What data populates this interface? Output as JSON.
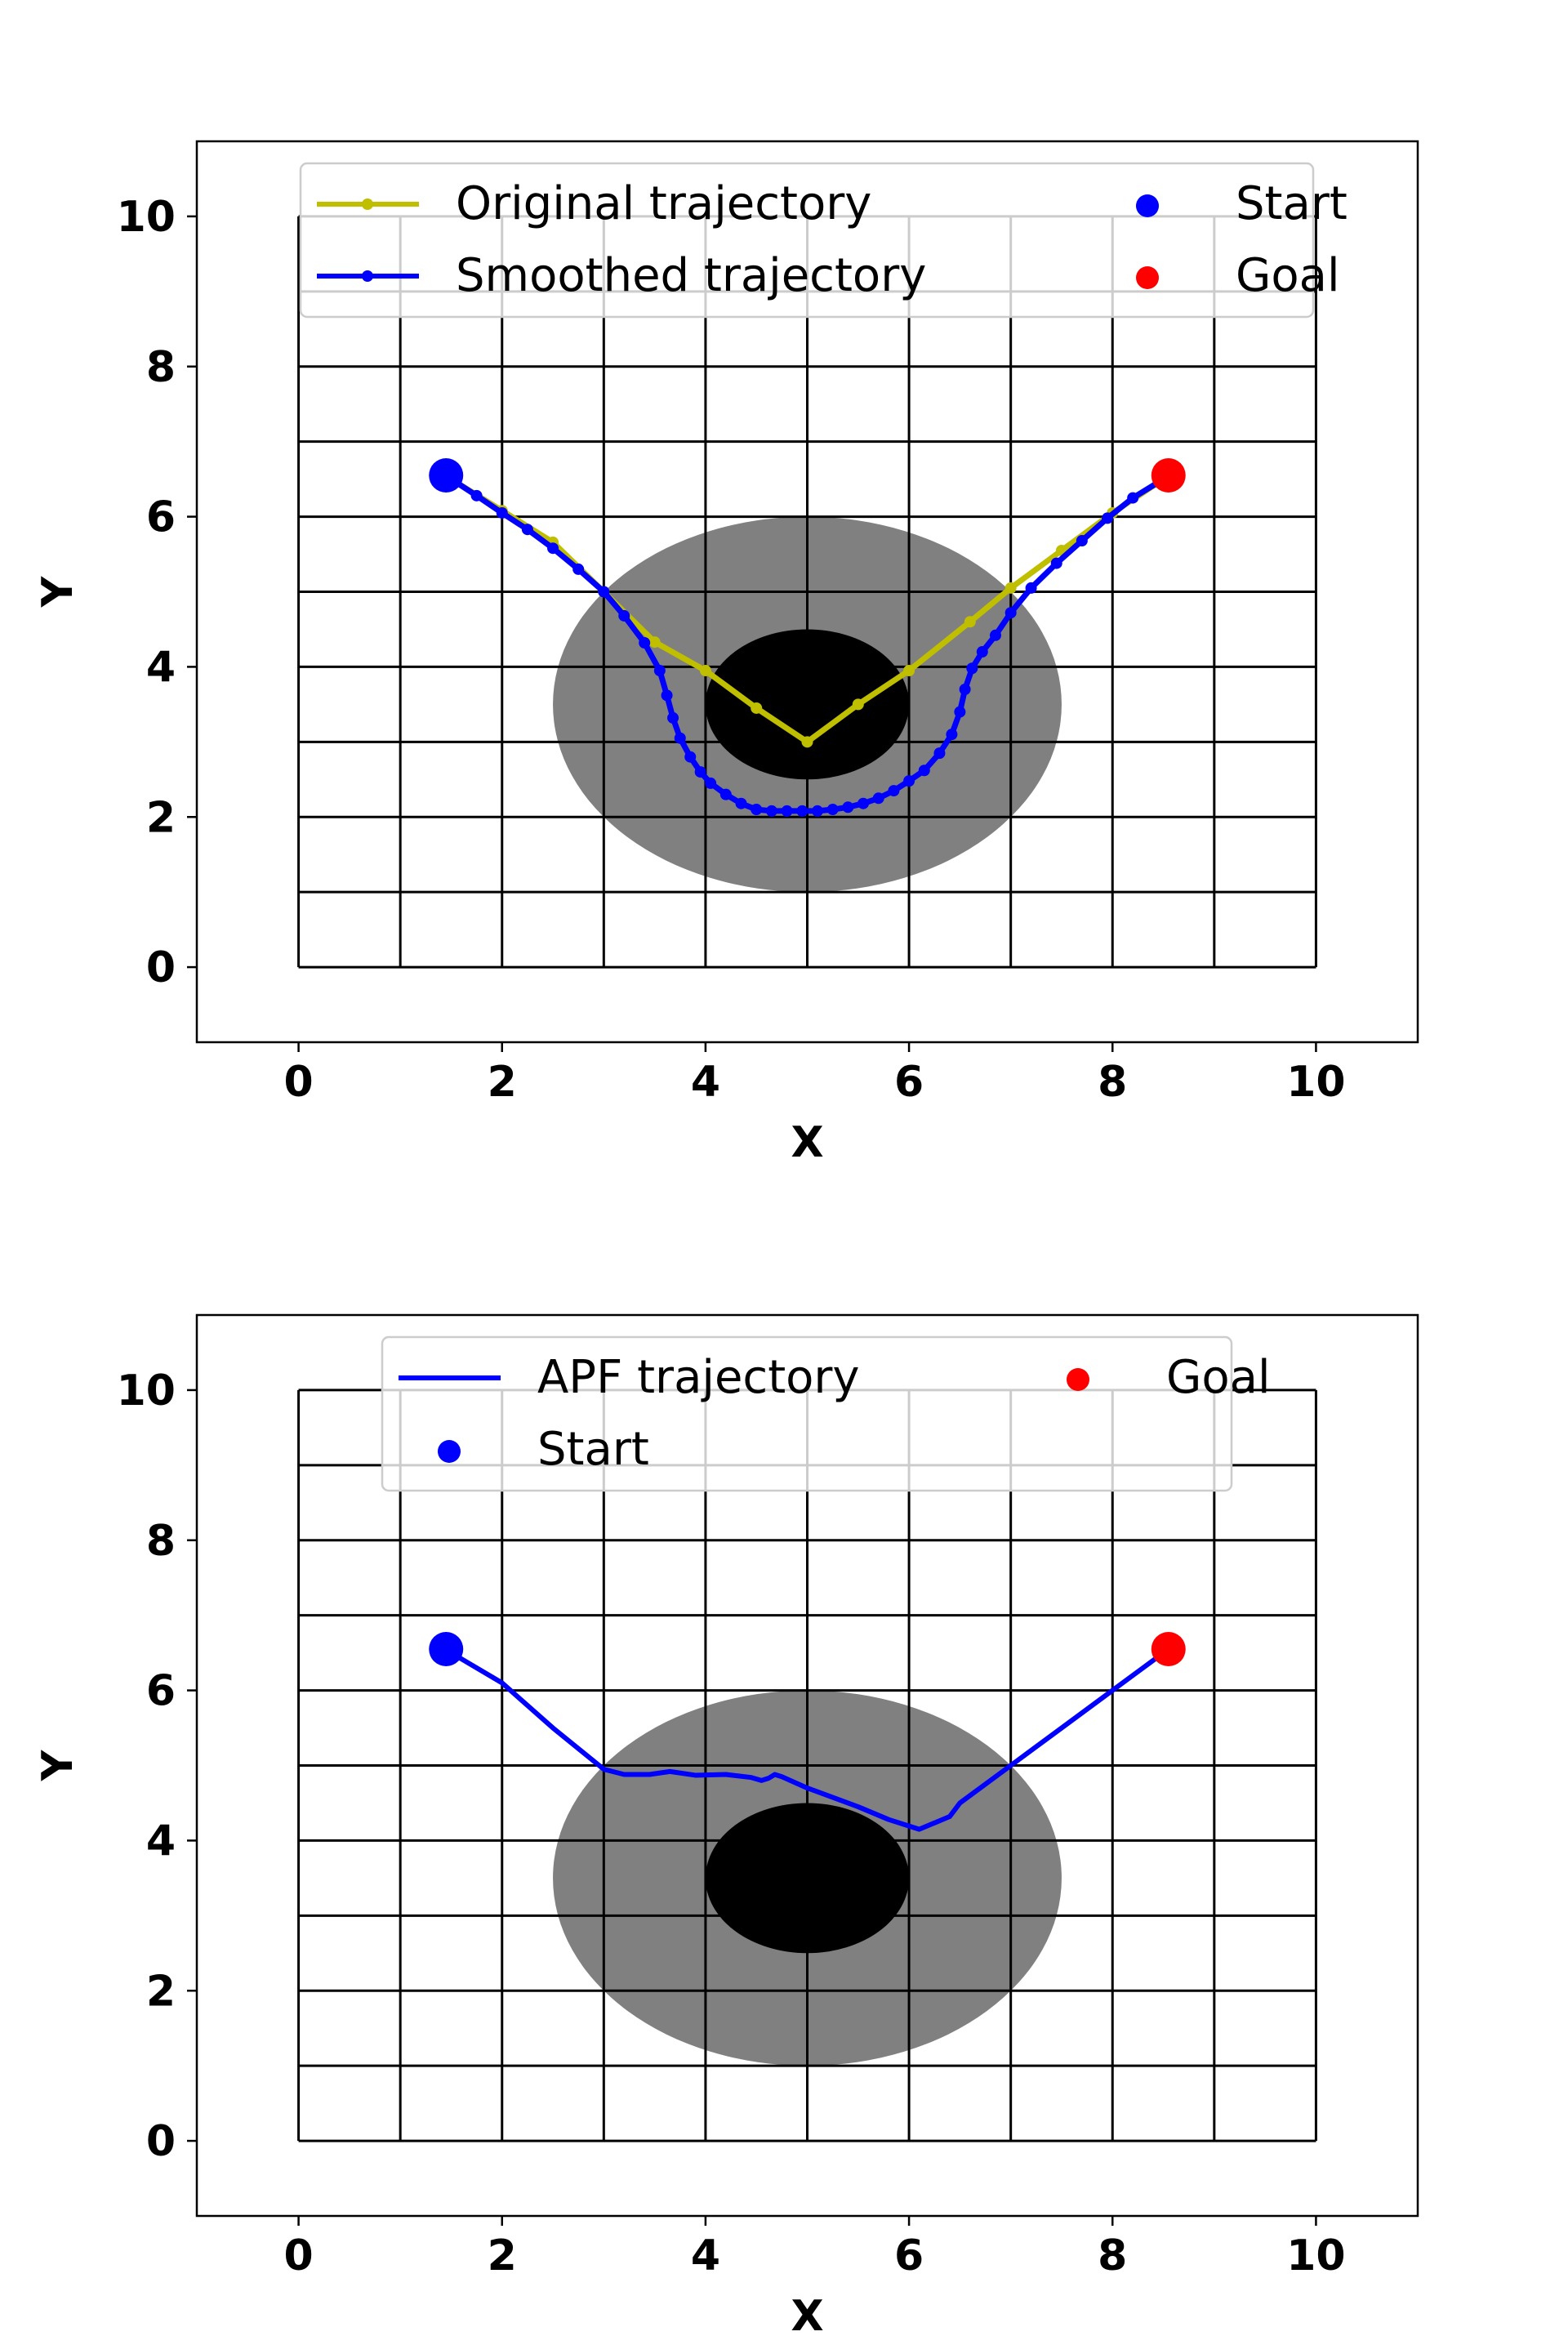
{
  "colors": {
    "background": "#ffffff",
    "grid": "#000000",
    "inner_obstacle": "#000000",
    "influence_zone": "#808080",
    "original": "#bfbf00",
    "smoothed": "#0000ff",
    "apf": "#0000ff",
    "start": "#0000ff",
    "goal": "#ff0000"
  },
  "chart_data": [
    {
      "type": "line",
      "xlabel": "X",
      "ylabel": "Y",
      "xlim": [
        -1,
        11
      ],
      "ylim": [
        -1,
        11
      ],
      "xticks": [
        "0",
        "2",
        "4",
        "6",
        "8",
        "10"
      ],
      "yticks": [
        "0",
        "2",
        "4",
        "6",
        "8",
        "10"
      ],
      "grid": {
        "x_range": [
          0,
          10
        ],
        "y_range": [
          0,
          10
        ],
        "x_step": 1,
        "y_step": 1
      },
      "obstacles": [
        {
          "kind": "influence-zone",
          "cx": 5,
          "cy": 3.5,
          "rx": 2.5,
          "ry": 2.5,
          "color": "#808080"
        },
        {
          "kind": "obstacle",
          "cx": 5,
          "cy": 3.5,
          "rx": 1,
          "ry": 1,
          "color": "#000000"
        }
      ],
      "legend_position": "upper-center",
      "legend": [
        "Original trajectory",
        "Smoothed trajectory",
        "Start",
        "Goal"
      ],
      "series": [
        {
          "name": "Original trajectory",
          "color": "#bfbf00",
          "marker": true,
          "x": [
            1.5,
            2.0,
            2.5,
            3.0,
            3.5,
            4.0,
            4.5,
            5.0,
            5.5,
            6.0,
            6.6,
            7.0,
            7.5,
            8.0,
            8.5
          ],
          "y": [
            6.5,
            6.08,
            5.66,
            5.0,
            4.33,
            3.95,
            3.45,
            3.0,
            3.5,
            3.95,
            4.6,
            5.05,
            5.55,
            6.05,
            6.5
          ]
        },
        {
          "name": "Smoothed trajectory",
          "color": "#0000ff",
          "marker": true,
          "x": [
            1.5,
            1.75,
            2.0,
            2.25,
            2.5,
            2.75,
            3.0,
            3.2,
            3.4,
            3.55,
            3.62,
            3.68,
            3.75,
            3.85,
            3.95,
            4.05,
            4.2,
            4.35,
            4.5,
            4.65,
            4.8,
            4.95,
            5.1,
            5.25,
            5.4,
            5.55,
            5.7,
            5.85,
            6.0,
            6.15,
            6.3,
            6.42,
            6.5,
            6.55,
            6.62,
            6.72,
            6.85,
            7.0,
            7.2,
            7.45,
            7.7,
            7.95,
            8.2,
            8.5
          ],
          "y": [
            6.5,
            6.28,
            6.05,
            5.83,
            5.58,
            5.3,
            5.0,
            4.68,
            4.32,
            3.95,
            3.62,
            3.32,
            3.05,
            2.8,
            2.6,
            2.45,
            2.3,
            2.18,
            2.1,
            2.08,
            2.08,
            2.08,
            2.08,
            2.1,
            2.13,
            2.18,
            2.25,
            2.35,
            2.48,
            2.62,
            2.85,
            3.1,
            3.4,
            3.7,
            3.98,
            4.2,
            4.42,
            4.72,
            5.05,
            5.38,
            5.68,
            5.98,
            6.25,
            6.5
          ]
        }
      ],
      "points": [
        {
          "name": "Start",
          "x": 1.45,
          "y": 6.55,
          "color": "#0000ff"
        },
        {
          "name": "Goal",
          "x": 8.55,
          "y": 6.55,
          "color": "#ff0000"
        }
      ]
    },
    {
      "type": "line",
      "xlabel": "X",
      "ylabel": "Y",
      "xlim": [
        -1,
        11
      ],
      "ylim": [
        -1,
        11
      ],
      "xticks": [
        "0",
        "2",
        "4",
        "6",
        "8",
        "10"
      ],
      "yticks": [
        "0",
        "2",
        "4",
        "6",
        "8",
        "10"
      ],
      "grid": {
        "x_range": [
          0,
          10
        ],
        "y_range": [
          0,
          10
        ],
        "x_step": 1,
        "y_step": 1
      },
      "obstacles": [
        {
          "kind": "influence-zone",
          "cx": 5,
          "cy": 3.5,
          "rx": 2.5,
          "ry": 2.5,
          "color": "#808080"
        },
        {
          "kind": "obstacle",
          "cx": 5,
          "cy": 3.5,
          "rx": 1,
          "ry": 1,
          "color": "#000000"
        }
      ],
      "legend_position": "upper-center",
      "legend": [
        "APF trajectory",
        "Start",
        "Goal"
      ],
      "series": [
        {
          "name": "APF trajectory",
          "color": "#0000ff",
          "marker": false,
          "x": [
            1.5,
            2.0,
            2.5,
            3.0,
            3.2,
            3.45,
            3.65,
            3.9,
            4.2,
            4.45,
            4.55,
            4.62,
            4.68,
            4.75,
            5.0,
            5.5,
            5.8,
            6.1,
            6.4,
            6.5,
            7.0,
            7.5,
            8.0,
            8.5
          ],
          "y": [
            6.5,
            6.1,
            5.5,
            4.95,
            4.88,
            4.88,
            4.92,
            4.87,
            4.88,
            4.84,
            4.8,
            4.83,
            4.88,
            4.85,
            4.7,
            4.45,
            4.28,
            4.15,
            4.32,
            4.5,
            5.0,
            5.5,
            6.0,
            6.5
          ]
        }
      ],
      "points": [
        {
          "name": "Start",
          "x": 1.45,
          "y": 6.55,
          "color": "#0000ff"
        },
        {
          "name": "Goal",
          "x": 8.55,
          "y": 6.55,
          "color": "#ff0000"
        }
      ]
    }
  ]
}
